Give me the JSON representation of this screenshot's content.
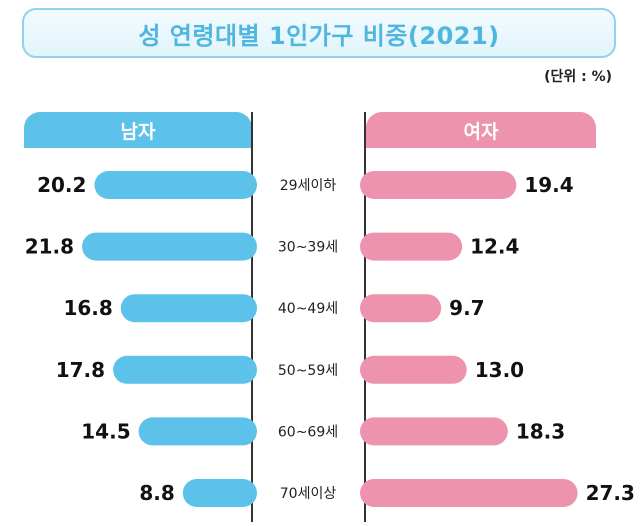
{
  "title": "성 연령대별 1인가구 비중(2021)",
  "unit": "(단위 : %)",
  "colors": {
    "male": "#5cc2ea",
    "female": "#ee93ad",
    "title": "#4fb6df"
  },
  "chart_data": {
    "type": "bar",
    "title": "성 연령대별 1인가구 비중(2021)",
    "unit": "(단위 : %)",
    "categories": [
      "29세이하",
      "30~39세",
      "40~49세",
      "50~59세",
      "60~69세",
      "70세이상"
    ],
    "series": [
      {
        "name": "남자",
        "values": [
          20.2,
          21.8,
          16.8,
          17.8,
          14.5,
          8.8
        ]
      },
      {
        "name": "여자",
        "values": [
          19.4,
          12.4,
          9.7,
          13.0,
          18.3,
          27.3
        ]
      }
    ],
    "value_labels": {
      "male": [
        "20.2",
        "21.8",
        "16.8",
        "17.8",
        "14.5",
        "8.8"
      ],
      "female": [
        "19.4",
        "12.4",
        "9.7",
        "13.0",
        "18.3",
        "27.3"
      ]
    },
    "orientation": "horizontal-butterfly"
  }
}
